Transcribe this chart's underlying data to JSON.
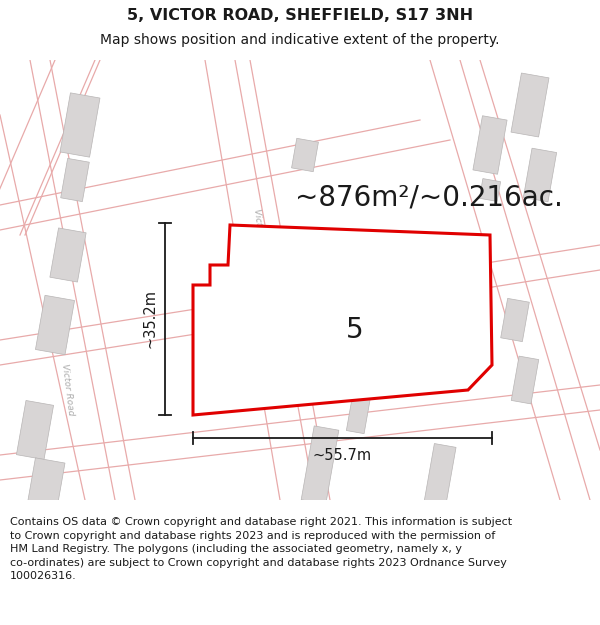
{
  "title_line1": "5, VICTOR ROAD, SHEFFIELD, S17 3NH",
  "title_line2": "Map shows position and indicative extent of the property.",
  "area_text": "~876m²/~0.216ac.",
  "property_number": "5",
  "dim_width": "~55.7m",
  "dim_height": "~35.2m",
  "footer_text_line1": "Contains OS data © Crown copyright and database right 2021. This information is subject",
  "footer_text_line2": "to Crown copyright and database rights 2023 and is reproduced with the permission of",
  "footer_text_line3": "HM Land Registry. The polygons (including the associated geometry, namely x, y",
  "footer_text_line4": "co-ordinates) are subject to Crown copyright and database rights 2023 Ordnance Survey",
  "footer_text_line5": "100026316.",
  "bg_color": "#f7f4f4",
  "map_bg": "#ffffff",
  "plot_color": "#e00000",
  "building_fill": "#d8d5d5",
  "building_edge": "#b8b5b5",
  "road_line_color": "#e8aaaa",
  "road_label_color": "#aaaaaa",
  "dim_line_color": "#1a1a1a",
  "title_fontsize": 11.5,
  "subtitle_fontsize": 10,
  "area_fontsize": 20,
  "number_fontsize": 20,
  "dim_fontsize": 10.5,
  "footer_fontsize": 8.0,
  "road_label_fontsize": 6.5
}
